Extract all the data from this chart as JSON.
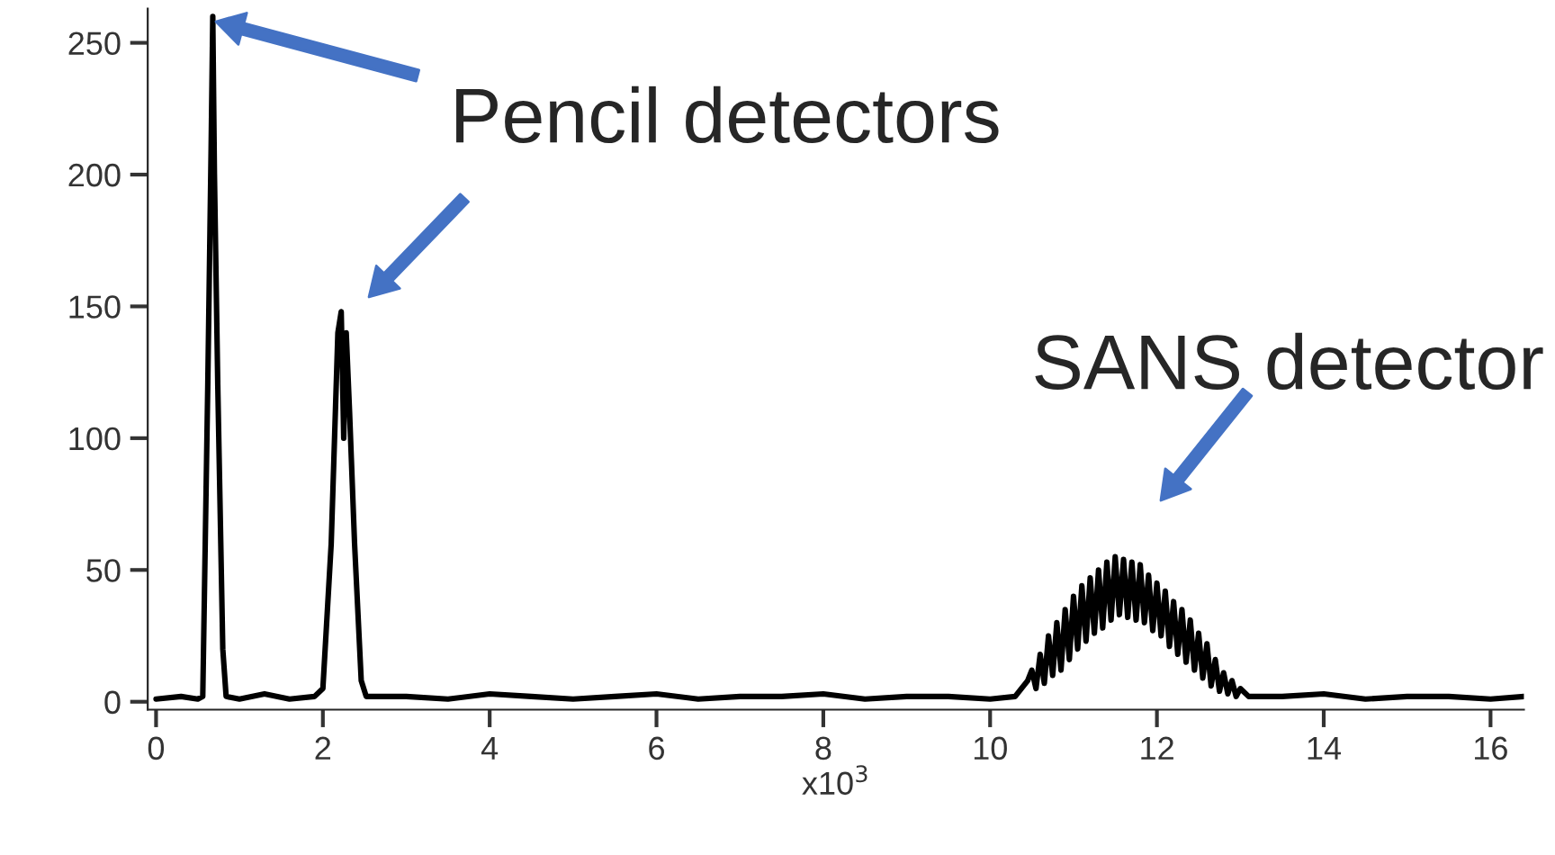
{
  "chart_data": {
    "type": "line",
    "xlabel": "x10$^{3}$",
    "xlim": [
      -0.1,
      16.4
    ],
    "xticks": [
      0,
      2,
      4,
      6,
      8,
      10,
      12,
      14,
      16
    ],
    "ylim": [
      -3,
      263
    ],
    "yticks": [
      0,
      50,
      100,
      150,
      200,
      250
    ],
    "grid": false,
    "legend": false,
    "marker": "none",
    "line_style": "solid",
    "series": [
      {
        "color": "#000000",
        "x": [
          0.0,
          0.3,
          0.5,
          0.56,
          0.62,
          0.66,
          0.68,
          0.7,
          0.74,
          0.8,
          0.84,
          1.0,
          1.3,
          1.6,
          1.9,
          2.0,
          2.1,
          2.18,
          2.22,
          2.25,
          2.28,
          2.32,
          2.38,
          2.46,
          2.52,
          3.0,
          3.5,
          4.0,
          4.5,
          5.0,
          5.5,
          6.0,
          6.5,
          7.0,
          7.5,
          8.0,
          8.5,
          9.0,
          9.5,
          10.0,
          10.3,
          10.45,
          10.5,
          10.55,
          10.6,
          10.65,
          10.7,
          10.75,
          10.8,
          10.85,
          10.9,
          10.95,
          11.0,
          11.05,
          11.1,
          11.15,
          11.2,
          11.25,
          11.3,
          11.35,
          11.4,
          11.45,
          11.5,
          11.55,
          11.6,
          11.65,
          11.7,
          11.75,
          11.8,
          11.85,
          11.9,
          11.95,
          12.0,
          12.05,
          12.1,
          12.15,
          12.2,
          12.25,
          12.3,
          12.35,
          12.4,
          12.45,
          12.5,
          12.55,
          12.6,
          12.65,
          12.7,
          12.75,
          12.8,
          12.85,
          12.9,
          12.95,
          13.0,
          13.1,
          13.5,
          14.0,
          14.5,
          15.0,
          15.5,
          16.0,
          16.4
        ],
        "values": [
          1,
          2,
          1,
          2,
          120,
          210,
          260,
          200,
          120,
          20,
          2,
          1,
          3,
          1,
          2,
          5,
          60,
          140,
          148,
          100,
          140,
          110,
          60,
          8,
          2,
          2,
          1,
          3,
          2,
          1,
          2,
          3,
          1,
          2,
          2,
          3,
          1,
          2,
          2,
          1,
          2,
          8,
          12,
          5,
          18,
          7,
          25,
          10,
          30,
          12,
          35,
          16,
          40,
          20,
          44,
          23,
          47,
          26,
          50,
          28,
          53,
          31,
          55,
          33,
          54,
          32,
          53,
          31,
          52,
          30,
          48,
          27,
          45,
          25,
          42,
          21,
          38,
          18,
          35,
          15,
          31,
          12,
          26,
          9,
          22,
          6,
          16,
          4,
          11,
          3,
          8,
          2,
          5,
          2,
          2,
          3,
          1,
          2,
          2,
          1,
          2
        ]
      }
    ],
    "annotations": [
      "Pencil detectors",
      "SANS detector"
    ]
  }
}
